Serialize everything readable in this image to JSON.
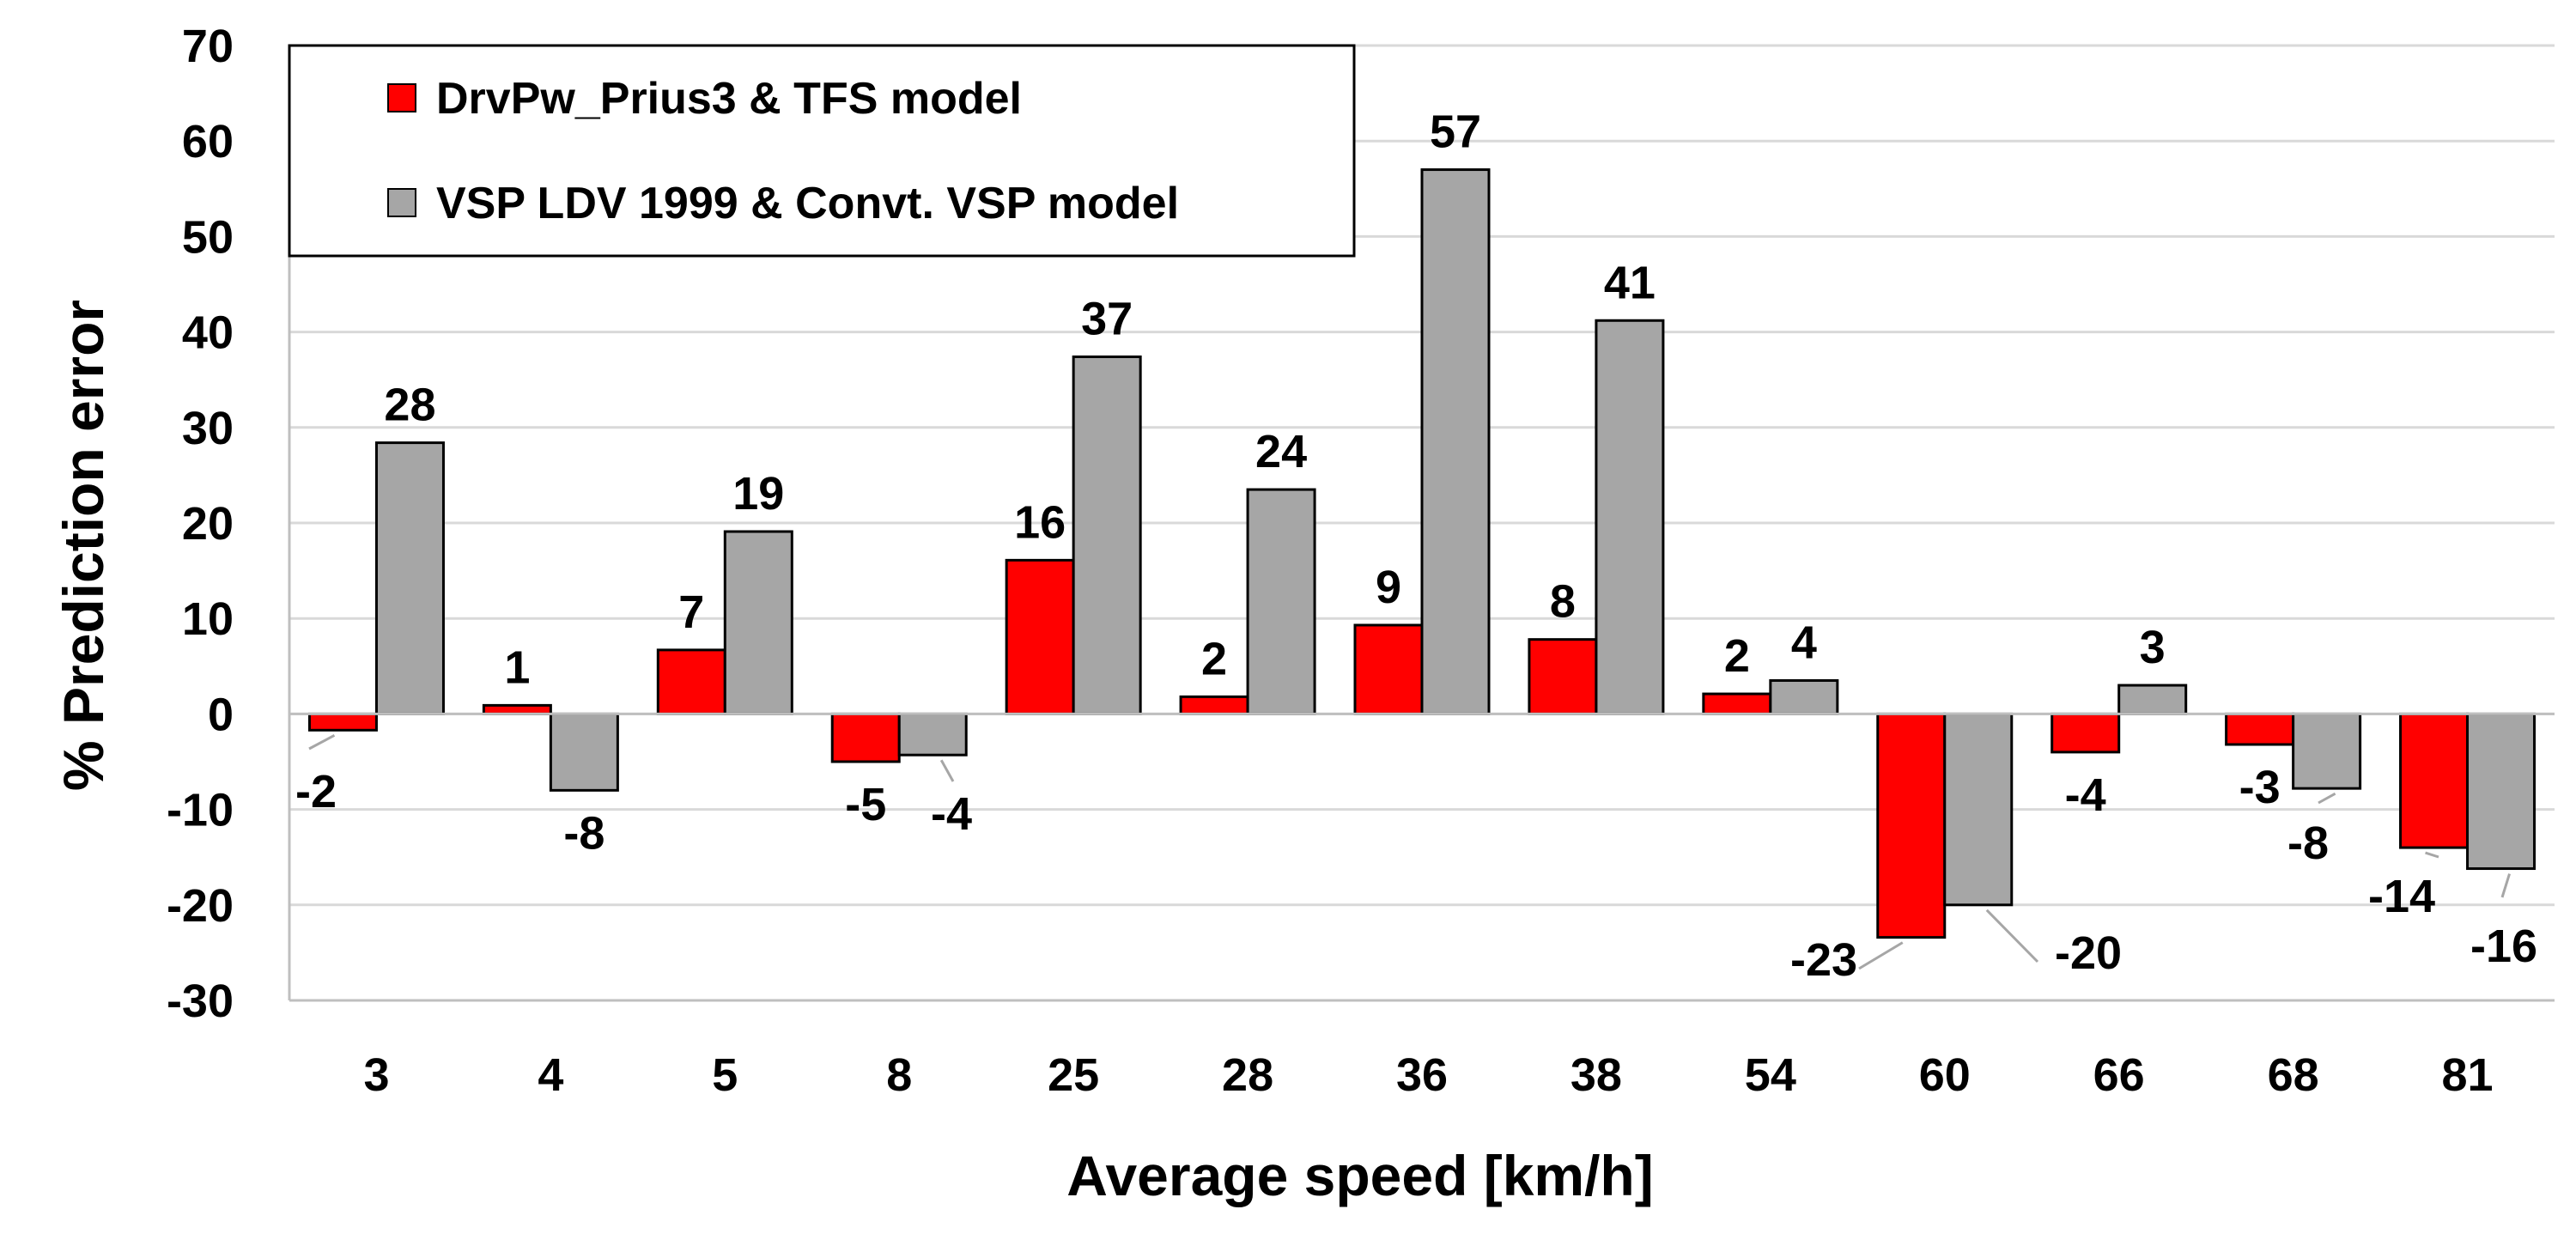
{
  "chart_data": {
    "type": "bar",
    "title": "",
    "xlabel": "Average speed [km/h]",
    "ylabel": "% Prediction error",
    "ylim": [
      -30,
      70
    ],
    "yticks": [
      -30,
      -20,
      -10,
      0,
      10,
      20,
      30,
      40,
      50,
      60,
      70
    ],
    "grid": true,
    "legend_position": "top-left",
    "categories": [
      "3",
      "4",
      "5",
      "8",
      "25",
      "28",
      "36",
      "38",
      "54",
      "60",
      "66",
      "68",
      "81"
    ],
    "series": [
      {
        "name": "DrvPw_Prius3 & TFS model",
        "color": "#ff0000",
        "values": [
          -1.7,
          0.9,
          6.7,
          -5.0,
          16.1,
          1.8,
          9.3,
          7.8,
          2.1,
          -23.4,
          -4.0,
          -3.2,
          -14.0
        ],
        "labels": [
          "-2",
          "1",
          "7",
          "-5",
          "16",
          "2",
          "9",
          "8",
          "2",
          "-23",
          "-4",
          "-3",
          "-14"
        ]
      },
      {
        "name": "VSP LDV 1999 & Convt. VSP model",
        "color": "#a6a6a6",
        "values": [
          28.4,
          -8.0,
          19.1,
          -4.3,
          37.4,
          23.5,
          57.0,
          41.2,
          3.5,
          -20.0,
          3.0,
          -7.8,
          -16.2
        ],
        "labels": [
          "28",
          "-8",
          "19",
          "-4",
          "37",
          "24",
          "57",
          "41",
          "4",
          "-20",
          "3",
          "-8",
          "-16"
        ]
      }
    ]
  }
}
